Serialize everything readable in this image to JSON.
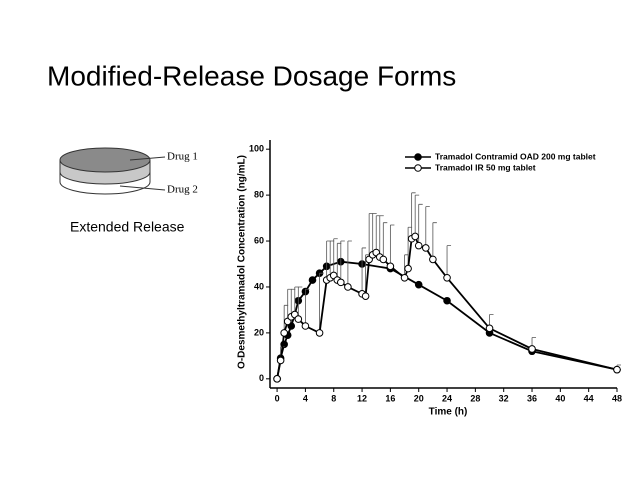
{
  "slide_title": "Modified-Release Dosage Forms",
  "figure": {
    "layer_1": "Drug 1",
    "layer_2": "Drug 2",
    "caption": "Extended Release"
  },
  "chart_data": {
    "type": "line",
    "xlabel": "Time (h)",
    "ylabel": "O-Desmethyltramadol Concentration (ng/mL)",
    "xlim": [
      -1,
      48
    ],
    "ylim": [
      -4,
      104
    ],
    "xticks": [
      0,
      4,
      8,
      12,
      16,
      20,
      24,
      28,
      32,
      36,
      40,
      44,
      48
    ],
    "yticks": [
      0,
      20,
      40,
      60,
      80,
      100
    ],
    "legend": "top-right",
    "series": [
      {
        "name": "Tramadol Contramid OAD 200 mg tablet",
        "color": "#000000",
        "marker": "filled",
        "x": [
          0,
          0.5,
          1,
          1.5,
          2,
          2.5,
          3,
          4,
          5,
          6,
          7,
          9,
          12,
          16,
          20,
          24,
          30,
          36,
          48
        ],
        "values": [
          0,
          9,
          15,
          19,
          23,
          28,
          34,
          38,
          43,
          46,
          49,
          51,
          50,
          48,
          41,
          34,
          20,
          12,
          4
        ]
      },
      {
        "name": "Tramadol IR 50 mg tablet",
        "color": "#000000",
        "marker": "open",
        "x": [
          0,
          0.5,
          1,
          1.5,
          2,
          2.5,
          3,
          4,
          6,
          7,
          7.5,
          8,
          8.5,
          9,
          10,
          12,
          12.5,
          13,
          13.5,
          14,
          14.5,
          15,
          16,
          18,
          18.5,
          19,
          19.5,
          20,
          21,
          22,
          24,
          30,
          36,
          48
        ],
        "values": [
          0,
          8,
          20,
          25,
          27,
          28,
          26,
          23,
          20,
          43,
          44,
          45,
          43,
          42,
          40,
          37,
          36,
          52,
          54,
          55,
          53,
          52,
          49,
          44,
          48,
          61,
          62,
          58,
          57,
          52,
          44,
          22,
          13,
          4
        ],
        "errors": [
          0,
          6,
          12,
          14,
          12,
          12,
          14,
          16,
          26,
          17,
          16,
          16,
          16,
          18,
          20,
          20,
          18,
          20,
          18,
          16,
          18,
          16,
          18,
          10,
          18,
          20,
          18,
          18,
          18,
          16,
          14,
          6,
          5,
          2
        ]
      }
    ]
  }
}
